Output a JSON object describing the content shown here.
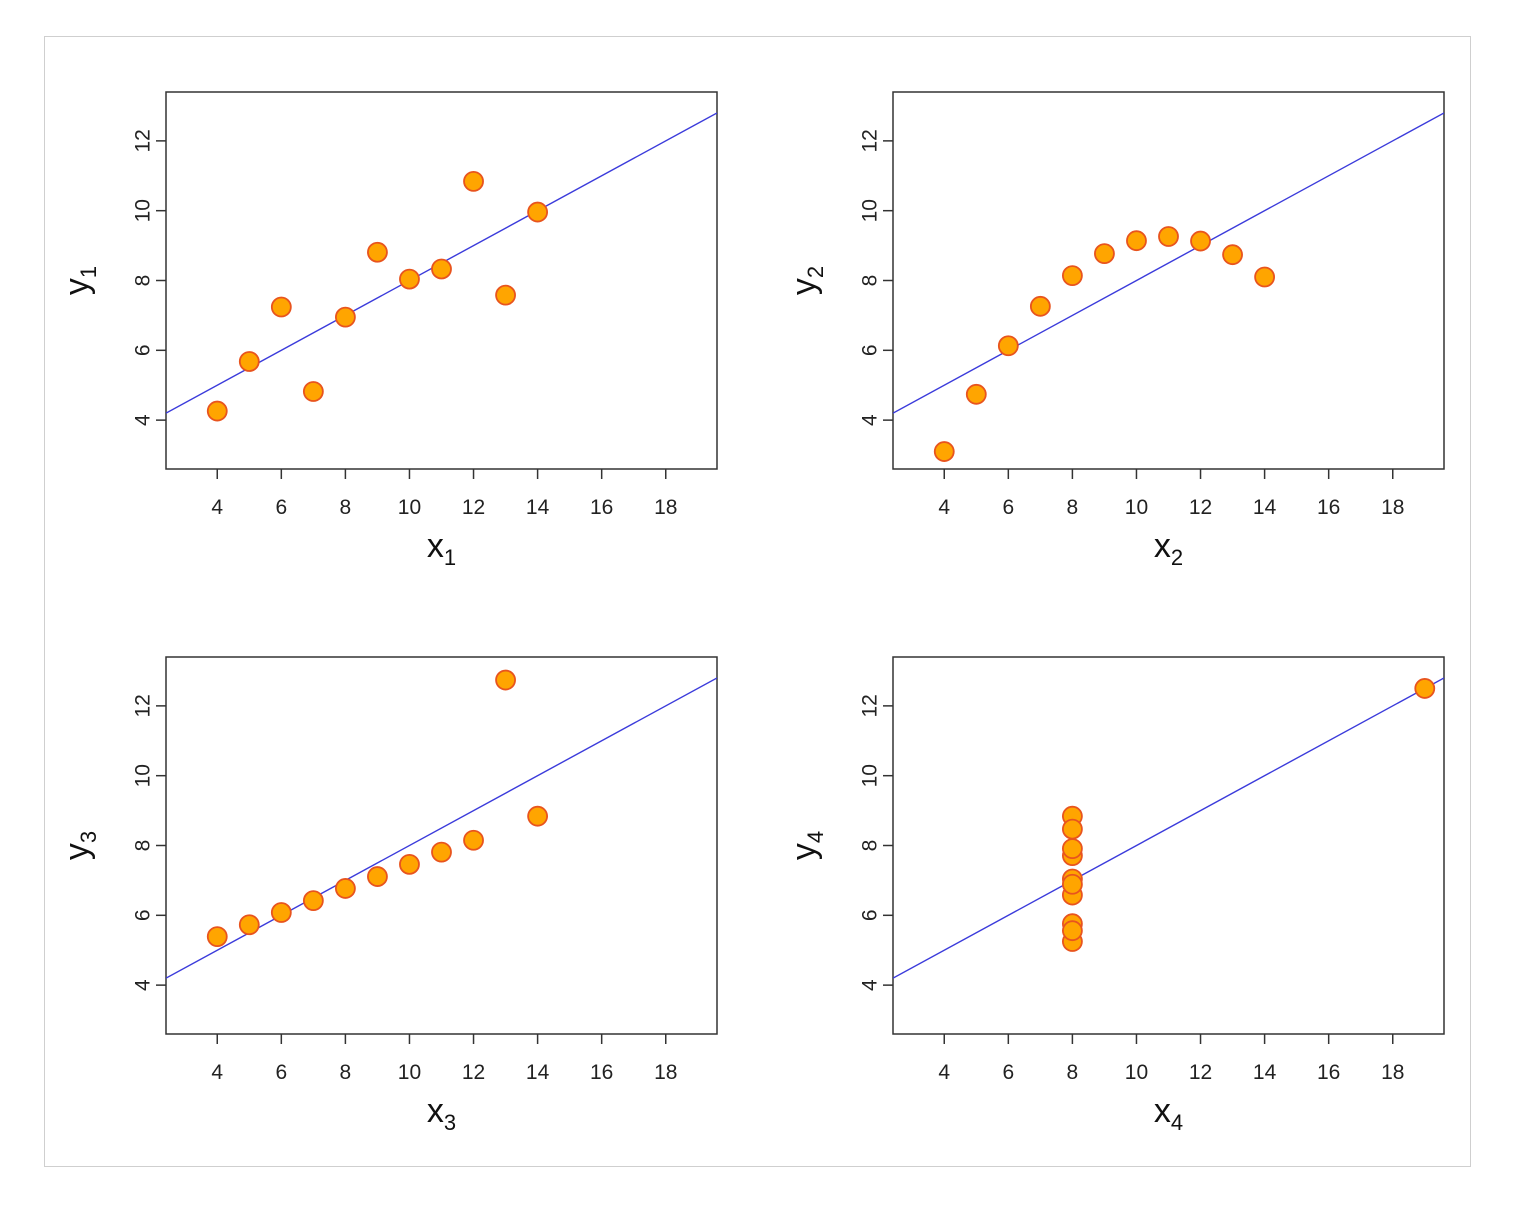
{
  "figure": {
    "colors": {
      "point_fill": "#ffa500",
      "point_stroke": "#e8541e",
      "fit_line": "#3b3bdb",
      "axes": "#333333"
    }
  },
  "chart_data": [
    {
      "type": "scatter",
      "title": "",
      "xlabel": "x",
      "xlabel_sub": "1",
      "ylabel": "y",
      "ylabel_sub": "1",
      "xlim": [
        2.4,
        19.6
      ],
      "ylim": [
        2.6,
        13.4
      ],
      "xticks": [
        4,
        6,
        8,
        10,
        12,
        14,
        16,
        18
      ],
      "yticks": [
        4,
        6,
        8,
        10,
        12
      ],
      "x": [
        10,
        8,
        13,
        9,
        11,
        14,
        6,
        4,
        12,
        7,
        5
      ],
      "y": [
        8.04,
        6.95,
        7.58,
        8.81,
        8.33,
        9.96,
        7.24,
        4.26,
        10.84,
        4.82,
        5.68
      ],
      "fit_line": {
        "intercept": 3.0,
        "slope": 0.5
      },
      "grid": false
    },
    {
      "type": "scatter",
      "title": "",
      "xlabel": "x",
      "xlabel_sub": "2",
      "ylabel": "y",
      "ylabel_sub": "2",
      "xlim": [
        2.4,
        19.6
      ],
      "ylim": [
        2.6,
        13.4
      ],
      "xticks": [
        4,
        6,
        8,
        10,
        12,
        14,
        16,
        18
      ],
      "yticks": [
        4,
        6,
        8,
        10,
        12
      ],
      "x": [
        10,
        8,
        13,
        9,
        11,
        14,
        6,
        4,
        12,
        7,
        5
      ],
      "y": [
        9.14,
        8.14,
        8.74,
        8.77,
        9.26,
        8.1,
        6.13,
        3.1,
        9.13,
        7.26,
        4.74
      ],
      "fit_line": {
        "intercept": 3.0,
        "slope": 0.5
      },
      "grid": false
    },
    {
      "type": "scatter",
      "title": "",
      "xlabel": "x",
      "xlabel_sub": "3",
      "ylabel": "y",
      "ylabel_sub": "3",
      "xlim": [
        2.4,
        19.6
      ],
      "ylim": [
        2.6,
        13.4
      ],
      "xticks": [
        4,
        6,
        8,
        10,
        12,
        14,
        16,
        18
      ],
      "yticks": [
        4,
        6,
        8,
        10,
        12
      ],
      "x": [
        10,
        8,
        13,
        9,
        11,
        14,
        6,
        4,
        12,
        7,
        5
      ],
      "y": [
        7.46,
        6.77,
        12.74,
        7.11,
        7.81,
        8.84,
        6.08,
        5.39,
        8.15,
        6.42,
        5.73
      ],
      "fit_line": {
        "intercept": 3.0,
        "slope": 0.5
      },
      "grid": false
    },
    {
      "type": "scatter",
      "title": "",
      "xlabel": "x",
      "xlabel_sub": "4",
      "ylabel": "y",
      "ylabel_sub": "4",
      "xlim": [
        2.4,
        19.6
      ],
      "ylim": [
        2.6,
        13.4
      ],
      "xticks": [
        4,
        6,
        8,
        10,
        12,
        14,
        16,
        18
      ],
      "yticks": [
        4,
        6,
        8,
        10,
        12
      ],
      "x": [
        8,
        8,
        8,
        8,
        8,
        8,
        8,
        19,
        8,
        8,
        8
      ],
      "y": [
        6.58,
        5.76,
        7.71,
        8.84,
        8.47,
        7.04,
        5.25,
        12.5,
        5.56,
        7.91,
        6.89
      ],
      "fit_line": {
        "intercept": 3.0,
        "slope": 0.5
      },
      "grid": false
    }
  ]
}
